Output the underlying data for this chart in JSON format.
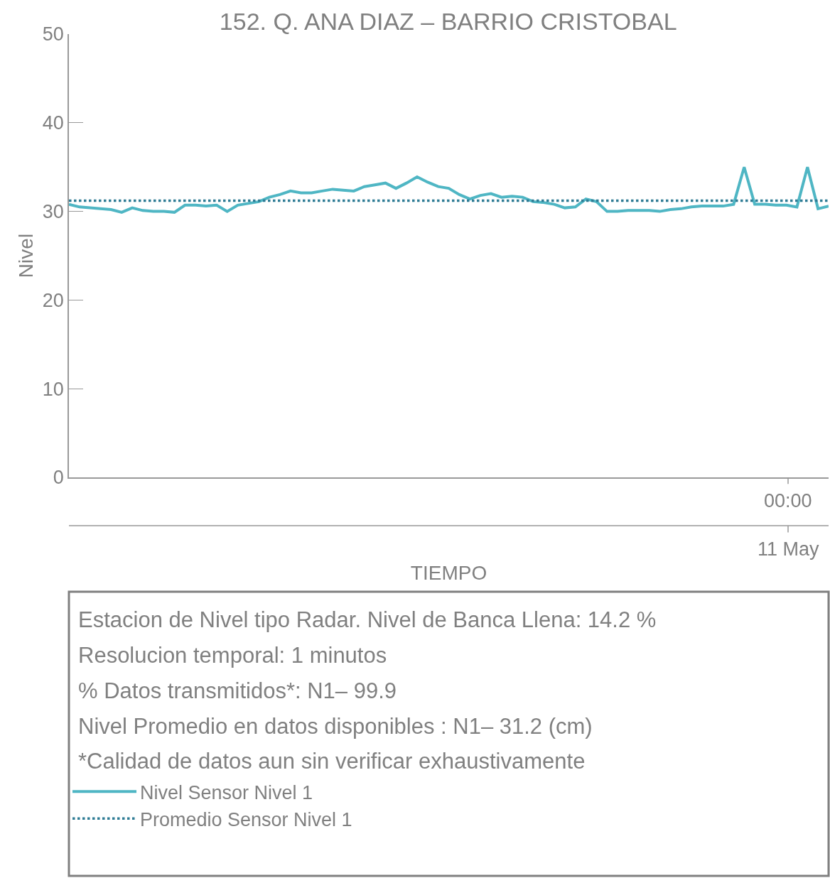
{
  "chart_data": {
    "type": "line",
    "title": "152. Q. ANA DIAZ – BARRIO CRISTOBAL",
    "xlabel": "TIEMPO",
    "ylabel": "Nivel",
    "categories": [
      null,
      null,
      null,
      null,
      null,
      null,
      null,
      null,
      null,
      null,
      null,
      null,
      null,
      null,
      null,
      null,
      null,
      null,
      null,
      null,
      null,
      null,
      null,
      null,
      null,
      null,
      null,
      null,
      null,
      null,
      null,
      null,
      null,
      null,
      null,
      null,
      null,
      null,
      null,
      null,
      null,
      null,
      null,
      null,
      null,
      null,
      null,
      null,
      null,
      null,
      null,
      null,
      null,
      null,
      null,
      null,
      null,
      null,
      null,
      null,
      null,
      null,
      null,
      null,
      null,
      null,
      null,
      null,
      null,
      null,
      null,
      null,
      null
    ],
    "ylim": [
      0,
      50
    ],
    "yticks": [
      0,
      10,
      20,
      30,
      40,
      50
    ],
    "legend": "bottom left",
    "marker": "none",
    "series": [
      {
        "name": "Nivel Sensor Nivel 1",
        "color": "#4fb6c4",
        "line_style": "solid",
        "values": [
          30.8,
          30.5,
          30.4,
          30.3,
          30.2,
          29.9,
          30.4,
          30.1,
          30.0,
          30.0,
          29.9,
          30.7,
          30.7,
          30.6,
          30.7,
          30.0,
          30.7,
          30.9,
          31.1,
          31.6,
          31.9,
          32.3,
          32.1,
          32.1,
          32.3,
          32.5,
          32.4,
          32.3,
          32.8,
          33.0,
          33.2,
          32.6,
          33.2,
          33.9,
          33.3,
          32.8,
          32.6,
          31.9,
          31.4,
          31.8,
          32.0,
          31.6,
          31.7,
          31.6,
          31.1,
          31.0,
          30.8,
          30.4,
          30.5,
          31.4,
          31.1,
          30.0,
          30.0,
          30.1,
          30.1,
          30.1,
          30.0,
          30.2,
          30.3,
          30.5,
          30.6,
          30.6,
          30.6,
          30.8,
          35.0,
          30.8,
          30.8,
          30.7,
          30.7,
          30.5,
          35.0,
          30.3,
          30.6
        ]
      }
    ],
    "ref_lines": [
      {
        "axis": "y",
        "value": 31.2,
        "label": "Promedio Sensor Nivel 1",
        "color": "#2f7c95",
        "line_style": "dotted"
      }
    ],
    "annotations": [
      "00:00\n11 May",
      "Estacion de Nivel tipo Radar. Nivel de Banca Llena: 14.2 %",
      "Resolucion temporal: 1 minutos",
      "% Datos transmitidos*: N1– 99.9",
      "Nivel Promedio en datos disponibles : N1– 31.2 (cm)",
      "*Calidad de datos aun sin verificar exhaustivamente"
    ]
  }
}
